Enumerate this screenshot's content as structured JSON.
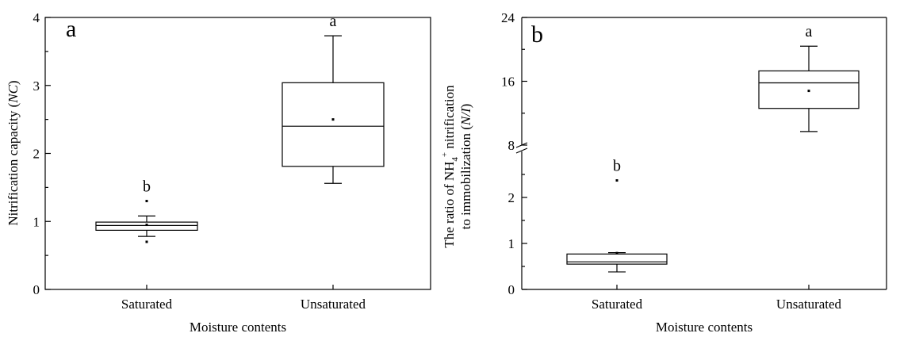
{
  "chart_data": [
    {
      "type": "box",
      "panel_letter": "a",
      "xlabel": "Moisture contents",
      "ylabel_main": "Nitrification capacity (",
      "ylabel_italic": "NC",
      "ylabel_end": ")",
      "ylim": [
        0,
        4
      ],
      "yticks": [
        0,
        1,
        2,
        3,
        4
      ],
      "ytick_labels": [
        "0",
        "1",
        "2",
        "3",
        "4"
      ],
      "categories": [
        "Saturated",
        "Unsaturated"
      ],
      "boxes": [
        {
          "category": "Saturated",
          "whisker_low": 0.78,
          "q1": 0.87,
          "median": 0.94,
          "q3": 0.99,
          "whisker_high": 1.08,
          "mean": 0.95,
          "outliers": [
            0.7,
            1.3
          ],
          "significance": "b"
        },
        {
          "category": "Unsaturated",
          "whisker_low": 1.56,
          "q1": 1.81,
          "median": 2.4,
          "q3": 3.04,
          "whisker_high": 3.73,
          "mean": 2.5,
          "outliers": [],
          "significance": "a"
        }
      ]
    },
    {
      "type": "box",
      "panel_letter": "b",
      "xlabel": "Moisture contents",
      "ylabel_line1": "The ratio of NH",
      "ylabel_sub": "4",
      "ylabel_sup": "+",
      "ylabel_line1_end": " nitrification",
      "ylabel_line2": "to immobilization (",
      "ylabel_italic": "N/I",
      "ylabel_line2_end": ")",
      "axis_break": true,
      "lower_ylim": [
        0,
        3
      ],
      "upper_ylim": [
        8,
        24
      ],
      "lower_yticks": [
        0,
        1,
        2
      ],
      "lower_ytick_labels": [
        "0",
        "1",
        "2"
      ],
      "upper_yticks": [
        8,
        16,
        24
      ],
      "upper_ytick_labels": [
        "8",
        "16",
        "24"
      ],
      "categories": [
        "Saturated",
        "Unsaturated"
      ],
      "boxes": [
        {
          "category": "Saturated",
          "whisker_low": 0.38,
          "q1": 0.55,
          "median": 0.6,
          "q3": 0.77,
          "whisker_high": 0.8,
          "mean": 0.79,
          "outliers": [
            2.37
          ],
          "significance": "b"
        },
        {
          "category": "Unsaturated",
          "whisker_low": 9.7,
          "q1": 12.6,
          "median": 15.8,
          "q3": 17.3,
          "whisker_high": 20.4,
          "mean": 14.8,
          "outliers": [],
          "significance": "a"
        }
      ]
    }
  ]
}
